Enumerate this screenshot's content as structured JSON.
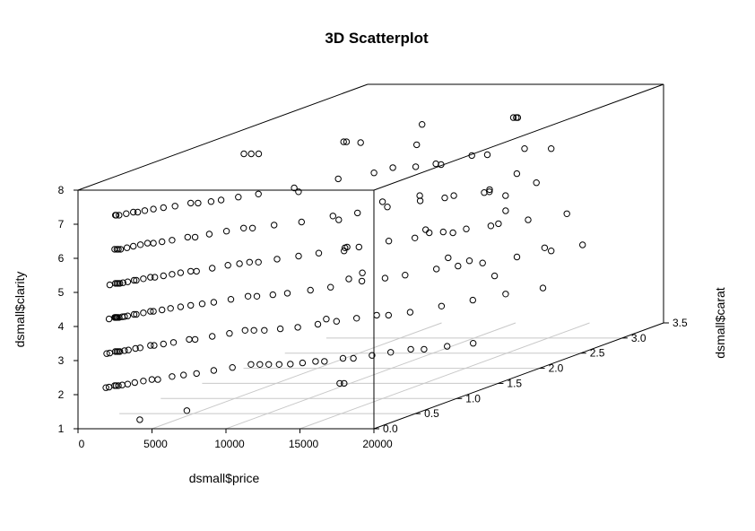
{
  "chart_data": {
    "type": "scatter",
    "title": "3D Scatterplot",
    "xlabel": "dsmall$price",
    "ylabel": "dsmall$clarity",
    "zlabel": "dsmall$carat",
    "xlim": [
      0,
      20000
    ],
    "ylim": [
      1,
      8
    ],
    "zlim": [
      0,
      3.5
    ],
    "x_ticks": [
      "0",
      "5000",
      "10000",
      "15000",
      "20000"
    ],
    "y_ticks": [
      "1",
      "2",
      "3",
      "4",
      "5",
      "6",
      "7",
      "8"
    ],
    "z_ticks": [
      "0.0",
      "0.5",
      "1.0",
      "1.5",
      "2.0",
      "2.5",
      "3.0",
      "3.5"
    ],
    "grid": true,
    "box": true,
    "points": [
      [
        850,
        7,
        0.3
      ],
      [
        900,
        7,
        0.3
      ],
      [
        1100,
        7,
        0.3
      ],
      [
        1300,
        7,
        0.35
      ],
      [
        1500,
        7,
        0.4
      ],
      [
        1800,
        7,
        0.4
      ],
      [
        2000,
        7,
        0.45
      ],
      [
        2300,
        7,
        0.5
      ],
      [
        2700,
        7,
        0.55
      ],
      [
        3200,
        7,
        0.6
      ],
      [
        3700,
        7,
        0.7
      ],
      [
        4200,
        7,
        0.7
      ],
      [
        4800,
        7,
        0.75
      ],
      [
        5200,
        7,
        0.8
      ],
      [
        5800,
        7,
        0.9
      ],
      [
        6600,
        7,
        1.0
      ],
      [
        7900,
        7,
        1.2
      ],
      [
        9200,
        7,
        1.5
      ],
      [
        10500,
        7,
        1.7
      ],
      [
        12200,
        7,
        1.9
      ],
      [
        13000,
        7,
        2.0
      ],
      [
        14800,
        7,
        2.3
      ],
      [
        16200,
        7,
        2.5
      ],
      [
        18000,
        7,
        2.5
      ],
      [
        800,
        6,
        0.3
      ],
      [
        950,
        6,
        0.3
      ],
      [
        1050,
        6,
        0.3
      ],
      [
        1200,
        6,
        0.3
      ],
      [
        1350,
        6,
        0.35
      ],
      [
        1500,
        6,
        0.4
      ],
      [
        1700,
        6,
        0.45
      ],
      [
        1900,
        6,
        0.5
      ],
      [
        2300,
        6,
        0.5
      ],
      [
        2600,
        6,
        0.55
      ],
      [
        3000,
        6,
        0.6
      ],
      [
        3500,
        6,
        0.7
      ],
      [
        4000,
        6,
        0.7
      ],
      [
        4400,
        6,
        0.8
      ],
      [
        5000,
        6,
        0.9
      ],
      [
        5600,
        6,
        1.0
      ],
      [
        6200,
        6,
        1.0
      ],
      [
        7100,
        6,
        1.1
      ],
      [
        8400,
        6,
        1.2
      ],
      [
        9400,
        6,
        1.4
      ],
      [
        10500,
        6,
        1.5
      ],
      [
        11400,
        6,
        1.7
      ],
      [
        12500,
        6,
        1.9
      ],
      [
        13600,
        6,
        2.0
      ],
      [
        15500,
        6,
        2.2
      ],
      [
        17000,
        6,
        2.5
      ],
      [
        750,
        5,
        0.25
      ],
      [
        850,
        5,
        0.3
      ],
      [
        950,
        5,
        0.3
      ],
      [
        1050,
        5,
        0.3
      ],
      [
        1150,
        5,
        0.3
      ],
      [
        1250,
        5,
        0.32
      ],
      [
        1400,
        5,
        0.35
      ],
      [
        1550,
        5,
        0.4
      ],
      [
        1700,
        5,
        0.4
      ],
      [
        1900,
        5,
        0.45
      ],
      [
        2100,
        5,
        0.5
      ],
      [
        2400,
        5,
        0.5
      ],
      [
        2700,
        5,
        0.55
      ],
      [
        3000,
        5,
        0.6
      ],
      [
        3300,
        5,
        0.65
      ],
      [
        3700,
        5,
        0.7
      ],
      [
        4100,
        5,
        0.7
      ],
      [
        4600,
        5,
        0.8
      ],
      [
        5100,
        5,
        0.9
      ],
      [
        5600,
        5,
        0.95
      ],
      [
        6000,
        5,
        1.0
      ],
      [
        6600,
        5,
        1.0
      ],
      [
        7300,
        5,
        1.1
      ],
      [
        8200,
        5,
        1.2
      ],
      [
        9000,
        5,
        1.3
      ],
      [
        9800,
        5,
        1.5
      ],
      [
        10600,
        5,
        1.5
      ],
      [
        11500,
        5,
        1.7
      ],
      [
        12700,
        5,
        1.8
      ],
      [
        13500,
        5,
        2.0
      ],
      [
        14500,
        5,
        2.1
      ],
      [
        15600,
        5,
        2.2
      ],
      [
        17000,
        5,
        2.4
      ],
      [
        18500,
        5,
        2.6
      ],
      [
        700,
        4,
        0.25
      ],
      [
        800,
        4,
        0.3
      ],
      [
        850,
        4,
        0.3
      ],
      [
        900,
        4,
        0.3
      ],
      [
        950,
        4,
        0.3
      ],
      [
        1000,
        4,
        0.3
      ],
      [
        1100,
        4,
        0.3
      ],
      [
        1200,
        4,
        0.32
      ],
      [
        1300,
        4,
        0.33
      ],
      [
        1400,
        4,
        0.35
      ],
      [
        1550,
        4,
        0.4
      ],
      [
        1700,
        4,
        0.4
      ],
      [
        1900,
        4,
        0.45
      ],
      [
        2100,
        4,
        0.5
      ],
      [
        2300,
        4,
        0.5
      ],
      [
        2600,
        4,
        0.55
      ],
      [
        2900,
        4,
        0.6
      ],
      [
        3300,
        4,
        0.65
      ],
      [
        3700,
        4,
        0.7
      ],
      [
        4200,
        4,
        0.75
      ],
      [
        4700,
        4,
        0.8
      ],
      [
        5300,
        4,
        0.9
      ],
      [
        5900,
        4,
        1.0
      ],
      [
        6500,
        4,
        1.0
      ],
      [
        7300,
        4,
        1.05
      ],
      [
        8000,
        4,
        1.1
      ],
      [
        9000,
        4,
        1.2
      ],
      [
        9800,
        4,
        1.3
      ],
      [
        10800,
        4,
        1.5
      ],
      [
        11800,
        4,
        1.6
      ],
      [
        12600,
        4,
        1.7
      ],
      [
        13600,
        4,
        1.9
      ],
      [
        14500,
        4,
        2.0
      ],
      [
        15600,
        4,
        2.1
      ],
      [
        16800,
        4,
        2.3
      ],
      [
        18000,
        4,
        2.5
      ],
      [
        19000,
        4,
        2.7
      ],
      [
        650,
        3,
        0.23
      ],
      [
        750,
        3,
        0.25
      ],
      [
        850,
        3,
        0.3
      ],
      [
        950,
        3,
        0.3
      ],
      [
        1050,
        3,
        0.3
      ],
      [
        1150,
        3,
        0.3
      ],
      [
        1300,
        3,
        0.33
      ],
      [
        1450,
        3,
        0.35
      ],
      [
        1650,
        3,
        0.4
      ],
      [
        1850,
        3,
        0.42
      ],
      [
        2100,
        3,
        0.5
      ],
      [
        2350,
        3,
        0.5
      ],
      [
        2700,
        3,
        0.55
      ],
      [
        3100,
        3,
        0.6
      ],
      [
        3600,
        3,
        0.7
      ],
      [
        4000,
        3,
        0.7
      ],
      [
        4600,
        3,
        0.8
      ],
      [
        5200,
        3,
        0.9
      ],
      [
        5700,
        3,
        1.0
      ],
      [
        6300,
        3,
        1.0
      ],
      [
        7000,
        3,
        1.0
      ],
      [
        7800,
        3,
        1.05
      ],
      [
        8700,
        3,
        1.1
      ],
      [
        9500,
        3,
        1.2
      ],
      [
        10200,
        3,
        1.3
      ],
      [
        11000,
        3,
        1.4
      ],
      [
        11800,
        3,
        1.5
      ],
      [
        12600,
        3,
        1.5
      ],
      [
        13500,
        3,
        1.6
      ],
      [
        14500,
        3,
        1.8
      ],
      [
        15500,
        3,
        2.0
      ],
      [
        16600,
        3,
        2.2
      ],
      [
        18000,
        3,
        2.4
      ],
      [
        600,
        2,
        0.23
      ],
      [
        700,
        2,
        0.25
      ],
      [
        800,
        2,
        0.3
      ],
      [
        900,
        2,
        0.3
      ],
      [
        1050,
        2,
        0.3
      ],
      [
        1200,
        2,
        0.32
      ],
      [
        1400,
        2,
        0.35
      ],
      [
        1600,
        2,
        0.4
      ],
      [
        1900,
        2,
        0.45
      ],
      [
        2200,
        2,
        0.5
      ],
      [
        2600,
        2,
        0.5
      ],
      [
        3000,
        2,
        0.6
      ],
      [
        3500,
        2,
        0.65
      ],
      [
        4100,
        2,
        0.7
      ],
      [
        4700,
        2,
        0.8
      ],
      [
        5400,
        2,
        0.9
      ],
      [
        6100,
        2,
        1.0
      ],
      [
        6700,
        2,
        1.0
      ],
      [
        7300,
        2,
        1.0
      ],
      [
        8000,
        2,
        1.0
      ],
      [
        8700,
        2,
        1.01
      ],
      [
        9300,
        2,
        1.05
      ],
      [
        9900,
        2,
        1.1
      ],
      [
        10500,
        2,
        1.1
      ],
      [
        11200,
        2,
        1.2
      ],
      [
        11900,
        2,
        1.2
      ],
      [
        12600,
        2,
        1.3
      ],
      [
        13300,
        2,
        1.4
      ],
      [
        14100,
        2,
        1.5
      ],
      [
        15000,
        2,
        1.5
      ],
      [
        16000,
        2,
        1.6
      ],
      [
        17200,
        2,
        1.7
      ],
      [
        2500,
        1,
        0.3
      ],
      [
        4000,
        1,
        0.6
      ],
      [
        9300,
        1,
        1.5
      ],
      [
        9600,
        1,
        1.5
      ],
      [
        4500,
        8,
        1.2
      ],
      [
        5000,
        8,
        1.2
      ],
      [
        5500,
        8,
        1.2
      ],
      [
        9000,
        8,
        1.6
      ],
      [
        9200,
        8,
        1.6
      ],
      [
        16000,
        8,
        2.4
      ],
      [
        16200,
        8,
        2.4
      ],
      [
        16300,
        8,
        2.4
      ],
      [
        14500,
        8,
        1.5
      ],
      [
        3200,
        3,
        2.7
      ],
      [
        3500,
        4,
        2.6
      ],
      [
        4000,
        4,
        2.5
      ],
      [
        3800,
        5,
        3.0
      ],
      [
        4500,
        6,
        3.0
      ],
      [
        4800,
        7,
        3.3
      ],
      [
        2600,
        6,
        2.2
      ],
      [
        4200,
        5,
        2.4
      ],
      [
        4000,
        7,
        2.7
      ],
      [
        5200,
        5,
        3.2
      ],
      [
        5600,
        4,
        3.2
      ],
      [
        6000,
        3,
        3.4
      ],
      [
        7500,
        5,
        3.2
      ],
      [
        8000,
        3,
        3.3
      ],
      [
        6400,
        4,
        3.1
      ],
      [
        8800,
        5,
        3.4
      ],
      [
        9400,
        4,
        3.4
      ],
      [
        7200,
        6,
        3.1
      ],
      [
        7600,
        6,
        3.4
      ],
      [
        2800,
        2,
        2.5
      ],
      [
        3000,
        3,
        2.9
      ],
      [
        12500,
        3,
        2.8
      ],
      [
        13800,
        5,
        2.7
      ],
      [
        14000,
        6,
        2.8
      ],
      [
        17000,
        4,
        2.6
      ],
      [
        8000,
        4,
        3.1
      ],
      [
        9000,
        5,
        3.3
      ],
      [
        11000,
        5,
        3.2
      ]
    ]
  }
}
